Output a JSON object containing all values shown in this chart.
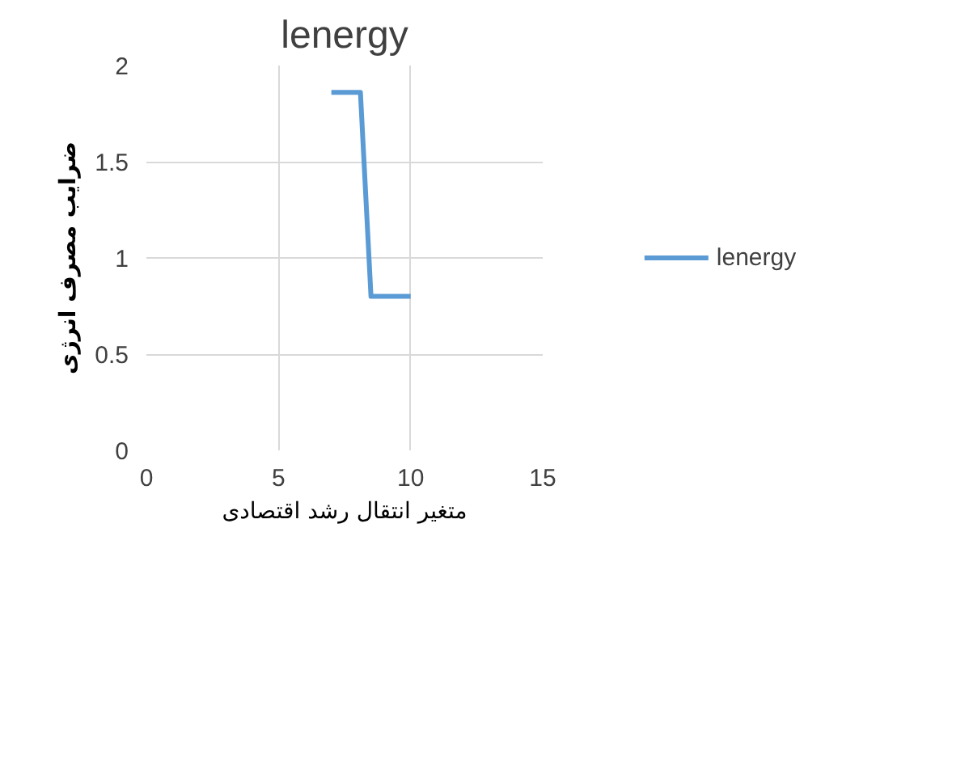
{
  "chart_data": {
    "type": "line",
    "title": "lenergy",
    "xlabel": "متغیر انتقال رشد اقتصادی",
    "ylabel": "ضرایب مصرف انرژی",
    "x": [
      7,
      8.1,
      8.5,
      10
    ],
    "series": [
      {
        "name": "lenergy",
        "color": "#5b9bd5",
        "values": [
          1.86,
          1.86,
          0.8,
          0.8
        ]
      }
    ],
    "xlim": [
      0,
      15
    ],
    "xticks": [
      0,
      5,
      10,
      15
    ],
    "ylim": [
      0,
      2
    ],
    "yticks": [
      0,
      0.5,
      1,
      1.5,
      2
    ],
    "grid": true,
    "legend": "right",
    "marker": "none",
    "line_style": "solid"
  }
}
